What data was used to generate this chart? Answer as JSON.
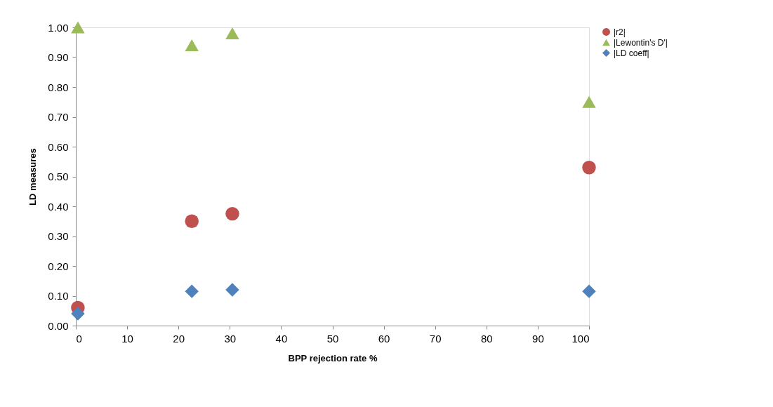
{
  "chart_data": {
    "type": "scatter",
    "xlabel": "BPP rejection rate %",
    "ylabel": "LD measures",
    "xlim": [
      0,
      100
    ],
    "xticks": [
      0,
      10,
      20,
      30,
      40,
      50,
      60,
      70,
      80,
      90,
      100
    ],
    "ylim": [
      0,
      1
    ],
    "yticks": [
      {
        "value": 0,
        "label": "0.00"
      },
      {
        "value": 0.1,
        "label": "0.10"
      },
      {
        "value": 0.2,
        "label": "0.20"
      },
      {
        "value": 0.3,
        "label": "0.30"
      },
      {
        "value": 0.4,
        "label": "0.40"
      },
      {
        "value": 0.5,
        "label": "0.50"
      },
      {
        "value": 0.6,
        "label": "0.60"
      },
      {
        "value": 0.7,
        "label": "0.70"
      },
      {
        "value": 0.8,
        "label": "0.80"
      },
      {
        "value": 0.9,
        "label": "0.90"
      },
      {
        "value": 1,
        "label": "1.00"
      }
    ],
    "grid": false,
    "legend": "right",
    "series": [
      {
        "name": "|r2|",
        "color": "#c0504d",
        "marker": "circle",
        "x": [
          0.4,
          22.6,
          30.5,
          100
        ],
        "values": [
          0.06,
          0.35,
          0.375,
          0.53
        ]
      },
      {
        "name": "|Lewontin's D'|",
        "color": "#9bbb59",
        "marker": "triangle",
        "x": [
          0.4,
          22.6,
          30.5,
          100
        ],
        "values": [
          1.0,
          0.94,
          0.98,
          0.75
        ]
      },
      {
        "name": "|LD coeff|",
        "color": "#4f81bd",
        "marker": "diamond",
        "x": [
          0.4,
          22.6,
          30.5,
          100
        ],
        "values": [
          0.04,
          0.115,
          0.12,
          0.115
        ]
      }
    ]
  }
}
